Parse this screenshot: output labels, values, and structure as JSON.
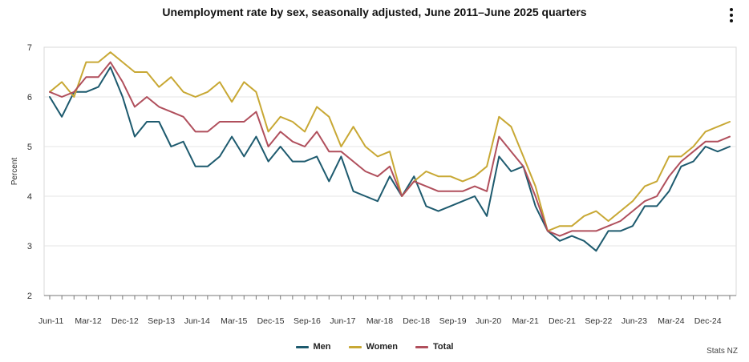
{
  "menu_icon": "kebab-menu-icon",
  "source": "Stats NZ",
  "colors": {
    "men": "#1d5a6e",
    "women": "#c8a834",
    "total": "#b04f5c",
    "grid": "#e4e4e4",
    "axis": "#777777",
    "text": "#333333"
  },
  "chart_data": {
    "type": "line",
    "title": "Unemployment rate by sex, seasonally adjusted, June 2011–June 2025 quarters",
    "xlabel": "",
    "ylabel": "Percent",
    "ylim": [
      2,
      7
    ],
    "yticks": [
      2,
      3,
      4,
      5,
      6,
      7
    ],
    "grid": true,
    "legend": "bottom-center",
    "x_tick_labels": [
      "Jun-11",
      "Mar-12",
      "Dec-12",
      "Sep-13",
      "Jun-14",
      "Mar-15",
      "Dec-15",
      "Sep-16",
      "Jun-17",
      "Mar-18",
      "Dec-18",
      "Sep-19",
      "Jun-20",
      "Mar-21",
      "Dec-21",
      "Sep-22",
      "Jun-23",
      "Mar-24",
      "Dec-24"
    ],
    "x_tick_index": [
      0,
      3,
      6,
      9,
      12,
      15,
      18,
      21,
      24,
      27,
      30,
      33,
      36,
      39,
      42,
      45,
      48,
      51,
      54
    ],
    "n_points": 57,
    "series": [
      {
        "name": "Men",
        "key": "men",
        "values": [
          6.0,
          5.6,
          6.1,
          6.1,
          6.2,
          6.6,
          6.0,
          5.2,
          5.5,
          5.5,
          5.0,
          5.1,
          4.6,
          4.6,
          4.8,
          5.2,
          4.8,
          5.2,
          4.7,
          5.0,
          4.7,
          4.7,
          4.8,
          4.3,
          4.8,
          4.1,
          4.0,
          3.9,
          4.4,
          4.0,
          4.4,
          3.8,
          3.7,
          3.8,
          3.9,
          4.0,
          3.6,
          4.8,
          4.5,
          4.6,
          3.8,
          3.3,
          3.1,
          3.2,
          3.1,
          2.9,
          3.3,
          3.3,
          3.4,
          3.8,
          3.8,
          4.1,
          4.6,
          4.7,
          5.0,
          4.9,
          5.0
        ]
      },
      {
        "name": "Women",
        "key": "women",
        "values": [
          6.1,
          6.3,
          6.0,
          6.7,
          6.7,
          6.9,
          6.7,
          6.5,
          6.5,
          6.2,
          6.4,
          6.1,
          6.0,
          6.1,
          6.3,
          5.9,
          6.3,
          6.1,
          5.3,
          5.6,
          5.5,
          5.3,
          5.8,
          5.6,
          5.0,
          5.4,
          5.0,
          4.8,
          4.9,
          4.0,
          4.3,
          4.5,
          4.4,
          4.4,
          4.3,
          4.4,
          4.6,
          5.6,
          5.4,
          4.8,
          4.2,
          3.3,
          3.4,
          3.4,
          3.6,
          3.7,
          3.5,
          3.7,
          3.9,
          4.2,
          4.3,
          4.8,
          4.8,
          5.0,
          5.3,
          5.4,
          5.5
        ]
      },
      {
        "name": "Total",
        "key": "total",
        "values": [
          6.1,
          6.0,
          6.1,
          6.4,
          6.4,
          6.7,
          6.3,
          5.8,
          6.0,
          5.8,
          5.7,
          5.6,
          5.3,
          5.3,
          5.5,
          5.5,
          5.5,
          5.7,
          5.0,
          5.3,
          5.1,
          5.0,
          5.3,
          4.9,
          4.9,
          4.7,
          4.5,
          4.4,
          4.6,
          4.0,
          4.3,
          4.2,
          4.1,
          4.1,
          4.1,
          4.2,
          4.1,
          5.2,
          4.9,
          4.6,
          4.0,
          3.3,
          3.2,
          3.3,
          3.3,
          3.3,
          3.4,
          3.5,
          3.7,
          3.9,
          4.0,
          4.4,
          4.7,
          4.9,
          5.1,
          5.1,
          5.2
        ]
      }
    ]
  }
}
